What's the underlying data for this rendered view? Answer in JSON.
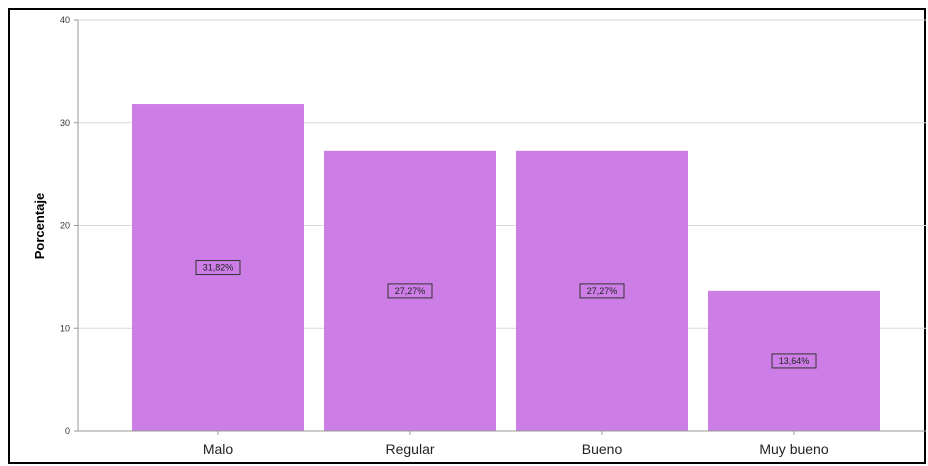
{
  "chart_data": {
    "type": "bar",
    "title": "",
    "xlabel": "",
    "ylabel": "Porcentaje",
    "categories": [
      "Malo",
      "Regular",
      "Bueno",
      "Muy bueno"
    ],
    "values": [
      31.82,
      27.27,
      27.27,
      13.64
    ],
    "data_labels": [
      "31,82%",
      "27,27%",
      "27,27%",
      "13,64%"
    ],
    "ylim": [
      0,
      40
    ],
    "yticks": [
      "0",
      "10",
      "20",
      "30",
      "40"
    ],
    "grid": true,
    "legend": "none",
    "bar_color": "#cc7ee6",
    "grid_color": "#d9d9d9"
  }
}
